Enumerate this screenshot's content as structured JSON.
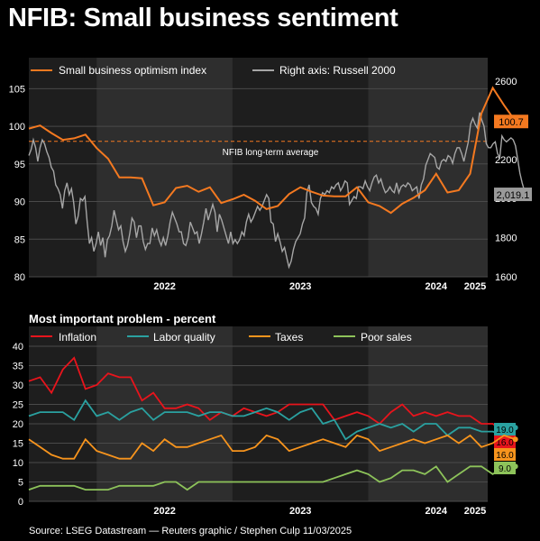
{
  "title": "NFIB: Small business sentiment",
  "subtitle": "Most important problem - percent",
  "source": "Source: LSEG Datastream — Reuters graphic / Stephen Culp 11/03/2025",
  "colors": {
    "optimism": "#f47920",
    "russell": "#a6a6a6",
    "inflation": "#e8141c",
    "labor": "#2aa1a0",
    "taxes": "#f7941d",
    "sales": "#8dc35a",
    "panel": "#1e1e1e",
    "shade": "#2e2e2e",
    "grid": "#4a4a4a"
  },
  "chart_data": [
    {
      "type": "line",
      "legend": [
        "Small business optimism index",
        "Right axis: Russell 2000"
      ],
      "annotation": "NFIB long-term average",
      "reference_line": 98,
      "ylim": [
        80,
        106
      ],
      "y_ticks": [
        "80",
        "85",
        "90",
        "95",
        "100",
        "105"
      ],
      "ylim_right": [
        1600,
        2600
      ],
      "y_ticks_right": [
        "1600",
        "1800",
        "2000",
        "2200",
        "2400",
        "2600"
      ],
      "x_ticks": [
        "2022",
        "2023",
        "2024",
        "2025"
      ],
      "end_labels": {
        "optimism": "100.7",
        "russell": "2,019.1"
      },
      "series": [
        {
          "name": "Small business optimism index",
          "axis": "left",
          "x": [
            "2021-07",
            "2021-08",
            "2021-09",
            "2021-10",
            "2021-11",
            "2021-12",
            "2022-01",
            "2022-02",
            "2022-03",
            "2022-04",
            "2022-05",
            "2022-06",
            "2022-07",
            "2022-08",
            "2022-09",
            "2022-10",
            "2022-11",
            "2022-12",
            "2023-01",
            "2023-02",
            "2023-03",
            "2023-04",
            "2023-05",
            "2023-06",
            "2023-07",
            "2023-08",
            "2023-09",
            "2023-10",
            "2023-11",
            "2023-12",
            "2024-01",
            "2024-02",
            "2024-03",
            "2024-04",
            "2024-05",
            "2024-06",
            "2024-07",
            "2024-08",
            "2024-09",
            "2024-10",
            "2024-11",
            "2024-12",
            "2025-01",
            "2025-02"
          ],
          "values": [
            99.7,
            100.1,
            99.1,
            98.2,
            98.4,
            98.9,
            97.1,
            95.7,
            93.2,
            93.2,
            93.1,
            89.5,
            89.9,
            91.8,
            92.1,
            91.3,
            91.9,
            89.8,
            90.3,
            90.9,
            90.1,
            89.0,
            89.4,
            91.0,
            91.9,
            91.3,
            90.8,
            90.7,
            90.7,
            91.9,
            89.9,
            89.4,
            88.5,
            89.7,
            90.5,
            91.5,
            93.7,
            91.2,
            91.5,
            93.7,
            101.7,
            105.1,
            102.8,
            100.7
          ]
        },
        {
          "name": "Right axis: Russell 2000",
          "axis": "right",
          "x_start": "2021-07",
          "x_end": "2025-03",
          "values": [
            2220,
            2250,
            2300,
            2260,
            2190,
            2260,
            2300,
            2280,
            2240,
            2210,
            2160,
            2140,
            2070,
            2050,
            2020,
            1950,
            2040,
            2080,
            2020,
            2050,
            1980,
            1870,
            1910,
            2000,
            1990,
            2010,
            1880,
            1770,
            1800,
            1730,
            1770,
            1830,
            1760,
            1800,
            1700,
            1790,
            1810,
            1860,
            1940,
            1890,
            1840,
            1860,
            1780,
            1730,
            1760,
            1820,
            1900,
            1880,
            1800,
            1860,
            1860,
            1780,
            1740,
            1770,
            1770,
            1850,
            1810,
            1840,
            1790,
            1760,
            1800,
            1760,
            1810,
            1880,
            1930,
            1900,
            1870,
            1830,
            1830,
            1770,
            1760,
            1800,
            1880,
            1850,
            1820,
            1830,
            1770,
            1820,
            1880,
            1950,
            1890,
            1930,
            1970,
            1930,
            1830,
            1920,
            1890,
            1850,
            1810,
            1770,
            1830,
            1770,
            1790,
            1770,
            1790,
            1830,
            1810,
            1880,
            1920,
            1880,
            1900,
            1930,
            1960,
            1940,
            1960,
            1990,
            2020,
            2000,
            1880,
            1870,
            1780,
            1820,
            1780,
            1730,
            1750,
            1700,
            1650,
            1680,
            1740,
            1780,
            1800,
            1820,
            1870,
            1900,
            2030,
            2070,
            1980,
            1960,
            1950,
            1920,
            2000,
            2030,
            2020,
            2040,
            2030,
            2060,
            2050,
            2070,
            2080,
            2040,
            2060,
            2090,
            2080,
            1970,
            1990,
            2010,
            2000,
            2060,
            2060,
            2050,
            2090,
            2060,
            2040,
            2080,
            2110,
            2120,
            2080,
            2100,
            2060,
            2030,
            2040,
            2060,
            2040,
            2030,
            2080,
            2030,
            2060,
            2070,
            2060,
            2080,
            2070,
            2040,
            2050,
            2060,
            2000,
            2070,
            2100,
            2170,
            2200,
            2230,
            2220,
            2210,
            2160,
            2150,
            2190,
            2200,
            2190,
            2220,
            2210,
            2180,
            2230,
            2260,
            2260,
            2230,
            2190,
            2240,
            2290,
            2380,
            2410,
            2380,
            2360,
            2440,
            2400,
            2370,
            2280,
            2260,
            2260,
            2280,
            2290,
            2230,
            2210,
            2320,
            2300,
            2290,
            2300,
            2310,
            2300,
            2270,
            2200,
            2130,
            2080,
            2040,
            2019.1
          ]
        }
      ]
    },
    {
      "type": "line",
      "legend": [
        "Inflation",
        "Labor quality",
        "Taxes",
        "Poor sales"
      ],
      "ylim": [
        0,
        40
      ],
      "y_ticks": [
        "0",
        "5",
        "10",
        "15",
        "20",
        "25",
        "30",
        "35",
        "40"
      ],
      "x_ticks": [
        "2022",
        "2023",
        "2024",
        "2025"
      ],
      "x": [
        "2021-07",
        "2021-08",
        "2021-09",
        "2021-10",
        "2021-11",
        "2021-12",
        "2022-01",
        "2022-02",
        "2022-03",
        "2022-04",
        "2022-05",
        "2022-06",
        "2022-07",
        "2022-08",
        "2022-09",
        "2022-10",
        "2022-11",
        "2022-12",
        "2023-01",
        "2023-02",
        "2023-03",
        "2023-04",
        "2023-05",
        "2023-06",
        "2023-07",
        "2023-08",
        "2023-09",
        "2023-10",
        "2023-11",
        "2023-12",
        "2024-01",
        "2024-02",
        "2024-03",
        "2024-04",
        "2024-05",
        "2024-06",
        "2024-07",
        "2024-08",
        "2024-09",
        "2024-10",
        "2024-11",
        "2024-12",
        "2025-01",
        "2025-02"
      ],
      "series": [
        {
          "name": "Inflation",
          "end_label": "16.0",
          "values": [
            31,
            32,
            28,
            34,
            37,
            29,
            30,
            33,
            32,
            32,
            26,
            28,
            24,
            24,
            25,
            24,
            21,
            23,
            22,
            24,
            23,
            22,
            23,
            25,
            25,
            25,
            25,
            21,
            22,
            23,
            22,
            20,
            23,
            25,
            22,
            23,
            22,
            23,
            22,
            22,
            20,
            20,
            18,
            16
          ]
        },
        {
          "name": "Labor quality",
          "end_label": "19.0",
          "values": [
            22,
            23,
            23,
            23,
            21,
            26,
            22,
            23,
            21,
            23,
            24,
            21,
            23,
            23,
            23,
            22,
            23,
            23,
            22,
            22,
            23,
            24,
            23,
            21,
            23,
            24,
            20,
            21,
            16,
            18,
            19,
            20,
            19,
            20,
            18,
            20,
            20,
            17,
            19,
            19,
            18,
            18,
            17,
            19
          ]
        },
        {
          "name": "Taxes",
          "end_label": "16.0",
          "values": [
            16,
            14,
            12,
            11,
            11,
            16,
            13,
            12,
            11,
            11,
            15,
            13,
            16,
            14,
            14,
            15,
            16,
            17,
            13,
            13,
            14,
            17,
            16,
            13,
            14,
            15,
            16,
            15,
            14,
            17,
            16,
            13,
            14,
            15,
            16,
            15,
            16,
            17,
            15,
            17,
            14,
            15,
            17,
            16
          ]
        },
        {
          "name": "Poor sales",
          "end_label": "9.0",
          "values": [
            3,
            4,
            4,
            4,
            4,
            3,
            3,
            3,
            4,
            4,
            4,
            4,
            5,
            5,
            3,
            5,
            5,
            5,
            5,
            5,
            5,
            5,
            5,
            5,
            5,
            5,
            5,
            6,
            7,
            8,
            7,
            5,
            6,
            8,
            8,
            7,
            9,
            5,
            7,
            9,
            9,
            7,
            9,
            9
          ]
        }
      ]
    }
  ]
}
